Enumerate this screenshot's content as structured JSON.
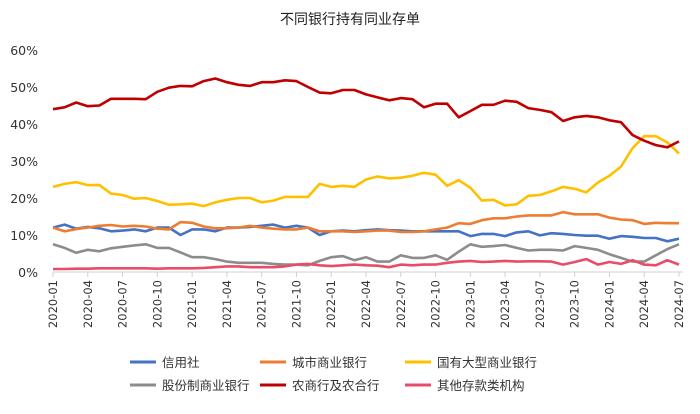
{
  "chart_data": {
    "type": "line",
    "title": "不同银行持有同业存单",
    "xlabel": "",
    "ylabel": "",
    "ylim": [
      0,
      60
    ],
    "yticks": [
      "0%",
      "10%",
      "20%",
      "30%",
      "40%",
      "50%",
      "60%"
    ],
    "grid": false,
    "legend": "bottom",
    "x_start": "2020-01",
    "x_ticks": [
      "2020-01",
      "2020-04",
      "2020-07",
      "2020-10",
      "2021-01",
      "2021-04",
      "2021-07",
      "2021-10",
      "2022-01",
      "2022-04",
      "2022-07",
      "2022-10",
      "2023-01",
      "2023-04",
      "2023-07",
      "2023-10",
      "2024-01",
      "2024-04",
      "2024-07"
    ],
    "series": [
      {
        "name": "信用社",
        "color": "#4472C4",
        "values": [
          12,
          12.8,
          11.7,
          12.2,
          11.8,
          11,
          11.2,
          11.5,
          11,
          12,
          12,
          10,
          11.5,
          11.5,
          11,
          12,
          12,
          12.2,
          12.5,
          12.8,
          12,
          12.5,
          12,
          10,
          11,
          11.2,
          11,
          11.3,
          11.5,
          11.3,
          11.2,
          11,
          11,
          11,
          11,
          11,
          9.7,
          10.3,
          10.3,
          9.7,
          10.7,
          11,
          9.9,
          10.5,
          10.3,
          10,
          9.8,
          9.8,
          9,
          9.7,
          9.5,
          9.2,
          9.2,
          8.3,
          9
        ]
      },
      {
        "name": "城市商业银行",
        "color": "#ED7D31",
        "values": [
          12,
          11,
          11.6,
          12,
          12.5,
          12.7,
          12.3,
          12.5,
          12.3,
          11.7,
          11.5,
          13.5,
          13.3,
          12.3,
          11.8,
          11.8,
          12,
          12.5,
          12,
          11.7,
          11.5,
          11.5,
          12,
          11,
          11,
          11,
          10.8,
          11,
          11.2,
          11.2,
          10.8,
          10.8,
          11,
          11.5,
          12,
          13.2,
          13,
          14,
          14.5,
          14.5,
          15,
          15.3,
          15.3,
          15.3,
          16.2,
          15.6,
          15.6,
          15.6,
          14.7,
          14.2,
          14,
          13,
          13.3,
          13.2,
          13.2
        ]
      },
      {
        "name": "国有大型商业银行",
        "color": "#FFC000",
        "values": [
          23,
          23.8,
          24.3,
          23.5,
          23.5,
          21.2,
          20.8,
          19.8,
          20,
          19.2,
          18.2,
          18.3,
          18.5,
          17.8,
          18.8,
          19.5,
          20,
          20,
          18.8,
          19.3,
          20.3,
          20.3,
          20.3,
          23.8,
          23,
          23.3,
          23,
          25,
          25.8,
          25.3,
          25.5,
          26,
          26.8,
          26.3,
          23.3,
          24.8,
          22.8,
          19.3,
          19.5,
          18,
          18.3,
          20.6,
          20.8,
          21.8,
          23,
          22.5,
          21.5,
          24.2,
          26,
          28.5,
          33.5,
          36.7,
          36.7,
          35,
          32
        ]
      },
      {
        "name": "股份制商业银行",
        "color": "#8C8C8C",
        "values": [
          7.5,
          6.5,
          5.2,
          6,
          5.6,
          6.4,
          6.8,
          7.2,
          7.5,
          6.5,
          6.5,
          5.3,
          4,
          4,
          3.5,
          2.8,
          2.5,
          2.5,
          2.5,
          2.2,
          2,
          2,
          1.8,
          3,
          4,
          4.3,
          3.2,
          4,
          2.8,
          2.8,
          4.5,
          3.8,
          3.8,
          4.5,
          3.3,
          5.5,
          7.5,
          6.8,
          7,
          7.3,
          6.5,
          5.8,
          6,
          6,
          5.8,
          7,
          6.5,
          6,
          4.8,
          3.8,
          2.8,
          2.8,
          4.5,
          6.2,
          7.5
        ]
      },
      {
        "name": "农商行及农合行",
        "color": "#C00000",
        "values": [
          44,
          44.5,
          45.8,
          44.8,
          45,
          46.8,
          46.8,
          46.8,
          46.7,
          48.7,
          49.8,
          50.3,
          50.2,
          51.6,
          52.3,
          51.3,
          50.6,
          50.3,
          51.3,
          51.3,
          51.8,
          51.6,
          50,
          48.5,
          48.3,
          49.2,
          49.2,
          48,
          47.2,
          46.4,
          47,
          46.7,
          44.5,
          45.5,
          45.5,
          41.8,
          43.5,
          45.2,
          45.2,
          46.3,
          46,
          44.3,
          43.8,
          43.2,
          40.8,
          41.8,
          42.2,
          41.8,
          41,
          40.5,
          37,
          35.5,
          34.3,
          33.7,
          35.3
        ]
      },
      {
        "name": "其他存款类机构",
        "color": "#E84C6A",
        "values": [
          0.8,
          0.8,
          0.9,
          0.9,
          1,
          1,
          1,
          1,
          1,
          0.9,
          1,
          1,
          1,
          1.1,
          1.3,
          1.5,
          1.5,
          1.3,
          1.3,
          1.3,
          1.5,
          2,
          2.2,
          1.8,
          1.6,
          1.8,
          2,
          1.8,
          1.7,
          1.3,
          2,
          1.8,
          2,
          2,
          2.5,
          2.8,
          3,
          2.7,
          2.8,
          3,
          2.8,
          2.9,
          2.9,
          2.8,
          2,
          2.7,
          3.5,
          2,
          2.7,
          2.2,
          3.2,
          2,
          1.8,
          3.2,
          2
        ]
      }
    ]
  }
}
